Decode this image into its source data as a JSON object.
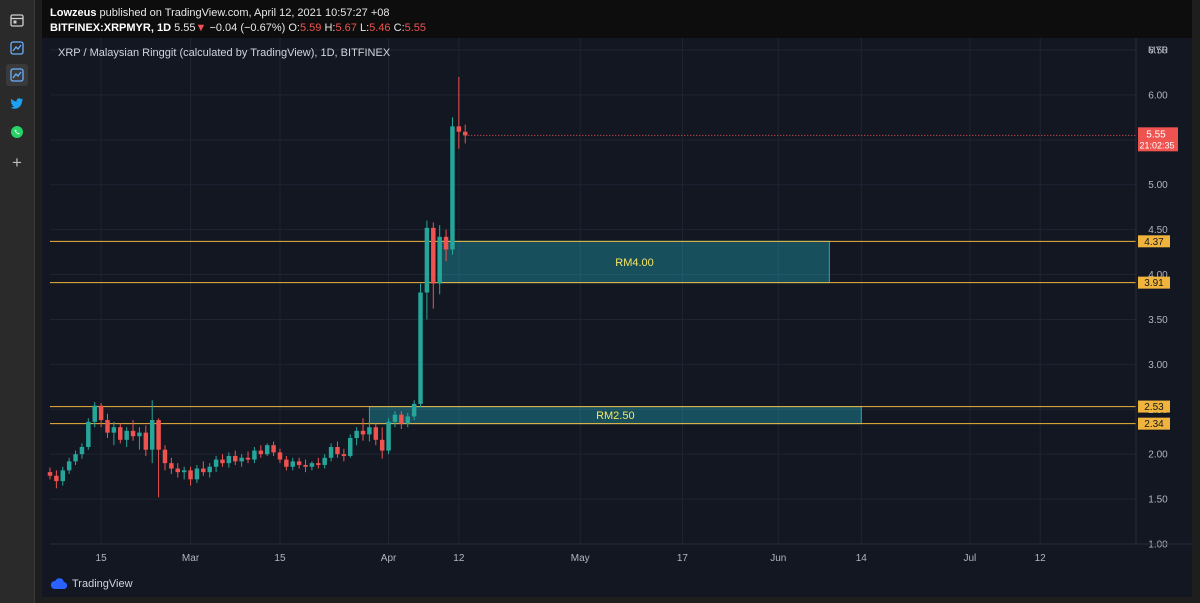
{
  "header": {
    "publisher_name": "Lowzeus",
    "publisher_text": "published on TradingView.com, April 12, 2021 10:57:27 +08",
    "symbol": "BITFINEX:XRPMYR, 1D",
    "last": "5.55",
    "change_arrow": "▼",
    "change": "−0.04 (−0.67%)",
    "o_label": "O:",
    "o_value": "5.59",
    "h_label": "H:",
    "h_value": "5.67",
    "l_label": "L:",
    "l_value": "5.46",
    "c_label": "C:",
    "c_value": "5.55"
  },
  "chart_title": "XRP / Malaysian Ringgit (calculated by TradingView), 1D, BITFINEX",
  "footer": {
    "brand": "TradingView"
  },
  "sidebar": {
    "icons": [
      "calendar-icon",
      "chart-icon",
      "chart-active-icon",
      "twitter-icon",
      "whatsapp-icon",
      "plus-icon"
    ]
  },
  "colors": {
    "up": "#26a69a",
    "down": "#ef5350",
    "level": "#f0b43c",
    "zone": "#26c6da",
    "zone_text": "#f5e663",
    "bg": "#131722",
    "grid": "#1f2433"
  },
  "chart_data": {
    "type": "candlestick",
    "currency_label": "MYR",
    "ylim": [
      1.0,
      6.5
    ],
    "yticks": [
      "6.50",
      "6.00",
      "5.50",
      "5.00",
      "4.50",
      "4.00",
      "3.50",
      "3.00",
      "2.50",
      "2.00",
      "1.50",
      "1.00"
    ],
    "xlim": [
      "2021-02-07",
      "2021-07-27"
    ],
    "xticks": [
      {
        "date": "2021-02-15",
        "label": "15"
      },
      {
        "date": "2021-03-01",
        "label": "Mar"
      },
      {
        "date": "2021-03-15",
        "label": "15"
      },
      {
        "date": "2021-04-01",
        "label": "Apr"
      },
      {
        "date": "2021-04-12",
        "label": "12"
      },
      {
        "date": "2021-05-01",
        "label": "May"
      },
      {
        "date": "2021-05-17",
        "label": "17"
      },
      {
        "date": "2021-06-01",
        "label": "Jun"
      },
      {
        "date": "2021-06-14",
        "label": "14"
      },
      {
        "date": "2021-07-01",
        "label": "Jul"
      },
      {
        "date": "2021-07-12",
        "label": "12"
      }
    ],
    "last_price": "5.55",
    "countdown": "21:02:35",
    "levels": [
      {
        "value": 4.37,
        "label": "4.37"
      },
      {
        "value": 3.91,
        "label": "3.91"
      },
      {
        "value": 2.53,
        "label": "2.53"
      },
      {
        "value": 2.34,
        "label": "2.34"
      }
    ],
    "zones": [
      {
        "from_date": "2021-04-09",
        "to_date": "2021-06-09",
        "low": 3.91,
        "high": 4.37,
        "label": "RM4.00"
      },
      {
        "from_date": "2021-03-29",
        "to_date": "2021-06-14",
        "low": 2.34,
        "high": 2.53,
        "label": "RM2.50"
      }
    ],
    "candles": [
      {
        "date": "2021-02-07",
        "o": 1.8,
        "h": 1.85,
        "l": 1.72,
        "c": 1.76
      },
      {
        "date": "2021-02-08",
        "o": 1.76,
        "h": 1.82,
        "l": 1.62,
        "c": 1.7
      },
      {
        "date": "2021-02-09",
        "o": 1.7,
        "h": 1.86,
        "l": 1.65,
        "c": 1.82
      },
      {
        "date": "2021-02-10",
        "o": 1.82,
        "h": 1.96,
        "l": 1.78,
        "c": 1.92
      },
      {
        "date": "2021-02-11",
        "o": 1.92,
        "h": 2.04,
        "l": 1.88,
        "c": 2.0
      },
      {
        "date": "2021-02-12",
        "o": 2.0,
        "h": 2.12,
        "l": 1.95,
        "c": 2.08
      },
      {
        "date": "2021-02-13",
        "o": 2.08,
        "h": 2.4,
        "l": 2.05,
        "c": 2.36
      },
      {
        "date": "2021-02-14",
        "o": 2.36,
        "h": 2.58,
        "l": 2.3,
        "c": 2.54
      },
      {
        "date": "2021-02-15",
        "o": 2.54,
        "h": 2.57,
        "l": 2.3,
        "c": 2.38
      },
      {
        "date": "2021-02-16",
        "o": 2.38,
        "h": 2.45,
        "l": 2.18,
        "c": 2.24
      },
      {
        "date": "2021-02-17",
        "o": 2.24,
        "h": 2.36,
        "l": 2.1,
        "c": 2.3
      },
      {
        "date": "2021-02-18",
        "o": 2.3,
        "h": 2.34,
        "l": 2.12,
        "c": 2.16
      },
      {
        "date": "2021-02-19",
        "o": 2.16,
        "h": 2.3,
        "l": 2.08,
        "c": 2.26
      },
      {
        "date": "2021-02-20",
        "o": 2.26,
        "h": 2.38,
        "l": 2.15,
        "c": 2.2
      },
      {
        "date": "2021-02-21",
        "o": 2.2,
        "h": 2.3,
        "l": 2.05,
        "c": 2.24
      },
      {
        "date": "2021-02-22",
        "o": 2.24,
        "h": 2.32,
        "l": 1.98,
        "c": 2.05
      },
      {
        "date": "2021-02-23",
        "o": 2.05,
        "h": 2.6,
        "l": 1.9,
        "c": 2.38
      },
      {
        "date": "2021-02-24",
        "o": 2.38,
        "h": 2.4,
        "l": 1.52,
        "c": 2.05
      },
      {
        "date": "2021-02-25",
        "o": 2.05,
        "h": 2.1,
        "l": 1.82,
        "c": 1.9
      },
      {
        "date": "2021-02-26",
        "o": 1.9,
        "h": 1.96,
        "l": 1.78,
        "c": 1.84
      },
      {
        "date": "2021-02-27",
        "o": 1.84,
        "h": 1.9,
        "l": 1.74,
        "c": 1.8
      },
      {
        "date": "2021-02-28",
        "o": 1.8,
        "h": 1.86,
        "l": 1.72,
        "c": 1.82
      },
      {
        "date": "2021-03-01",
        "o": 1.82,
        "h": 1.86,
        "l": 1.65,
        "c": 1.72
      },
      {
        "date": "2021-03-02",
        "o": 1.72,
        "h": 1.88,
        "l": 1.68,
        "c": 1.84
      },
      {
        "date": "2021-03-03",
        "o": 1.84,
        "h": 1.92,
        "l": 1.76,
        "c": 1.8
      },
      {
        "date": "2021-03-04",
        "o": 1.8,
        "h": 1.9,
        "l": 1.74,
        "c": 1.86
      },
      {
        "date": "2021-03-05",
        "o": 1.86,
        "h": 1.98,
        "l": 1.8,
        "c": 1.94
      },
      {
        "date": "2021-03-06",
        "o": 1.94,
        "h": 2.0,
        "l": 1.86,
        "c": 1.9
      },
      {
        "date": "2021-03-07",
        "o": 1.9,
        "h": 2.02,
        "l": 1.85,
        "c": 1.98
      },
      {
        "date": "2021-03-08",
        "o": 1.98,
        "h": 2.04,
        "l": 1.88,
        "c": 1.92
      },
      {
        "date": "2021-03-09",
        "o": 1.92,
        "h": 2.0,
        "l": 1.86,
        "c": 1.96
      },
      {
        "date": "2021-03-10",
        "o": 1.96,
        "h": 2.03,
        "l": 1.9,
        "c": 1.94
      },
      {
        "date": "2021-03-11",
        "o": 1.94,
        "h": 2.08,
        "l": 1.9,
        "c": 2.04
      },
      {
        "date": "2021-03-12",
        "o": 2.04,
        "h": 2.1,
        "l": 1.96,
        "c": 2.0
      },
      {
        "date": "2021-03-13",
        "o": 2.0,
        "h": 2.12,
        "l": 1.98,
        "c": 2.1
      },
      {
        "date": "2021-03-14",
        "o": 2.1,
        "h": 2.14,
        "l": 1.98,
        "c": 2.02
      },
      {
        "date": "2021-03-15",
        "o": 2.02,
        "h": 2.06,
        "l": 1.9,
        "c": 1.94
      },
      {
        "date": "2021-03-16",
        "o": 1.94,
        "h": 1.98,
        "l": 1.82,
        "c": 1.86
      },
      {
        "date": "2021-03-17",
        "o": 1.86,
        "h": 1.96,
        "l": 1.82,
        "c": 1.92
      },
      {
        "date": "2021-03-18",
        "o": 1.92,
        "h": 1.96,
        "l": 1.84,
        "c": 1.88
      },
      {
        "date": "2021-03-19",
        "o": 1.88,
        "h": 1.94,
        "l": 1.8,
        "c": 1.86
      },
      {
        "date": "2021-03-20",
        "o": 1.86,
        "h": 1.92,
        "l": 1.82,
        "c": 1.9
      },
      {
        "date": "2021-03-21",
        "o": 1.9,
        "h": 1.96,
        "l": 1.84,
        "c": 1.88
      },
      {
        "date": "2021-03-22",
        "o": 1.88,
        "h": 2.0,
        "l": 1.84,
        "c": 1.96
      },
      {
        "date": "2021-03-23",
        "o": 1.96,
        "h": 2.12,
        "l": 1.92,
        "c": 2.08
      },
      {
        "date": "2021-03-24",
        "o": 2.08,
        "h": 2.14,
        "l": 1.96,
        "c": 2.0
      },
      {
        "date": "2021-03-25",
        "o": 2.0,
        "h": 2.06,
        "l": 1.92,
        "c": 1.98
      },
      {
        "date": "2021-03-26",
        "o": 1.98,
        "h": 2.22,
        "l": 1.96,
        "c": 2.18
      },
      {
        "date": "2021-03-27",
        "o": 2.18,
        "h": 2.3,
        "l": 2.1,
        "c": 2.26
      },
      {
        "date": "2021-03-28",
        "o": 2.26,
        "h": 2.4,
        "l": 2.15,
        "c": 2.22
      },
      {
        "date": "2021-03-29",
        "o": 2.22,
        "h": 2.36,
        "l": 2.14,
        "c": 2.3
      },
      {
        "date": "2021-03-30",
        "o": 2.3,
        "h": 2.34,
        "l": 2.1,
        "c": 2.16
      },
      {
        "date": "2021-03-31",
        "o": 2.16,
        "h": 2.3,
        "l": 1.95,
        "c": 2.04
      },
      {
        "date": "2021-04-01",
        "o": 2.04,
        "h": 2.4,
        "l": 2.0,
        "c": 2.36
      },
      {
        "date": "2021-04-02",
        "o": 2.36,
        "h": 2.48,
        "l": 2.3,
        "c": 2.44
      },
      {
        "date": "2021-04-03",
        "o": 2.44,
        "h": 2.48,
        "l": 2.28,
        "c": 2.34
      },
      {
        "date": "2021-04-04",
        "o": 2.34,
        "h": 2.46,
        "l": 2.3,
        "c": 2.42
      },
      {
        "date": "2021-04-05",
        "o": 2.42,
        "h": 2.6,
        "l": 2.38,
        "c": 2.56
      },
      {
        "date": "2021-04-06",
        "o": 2.56,
        "h": 3.9,
        "l": 2.52,
        "c": 3.8
      },
      {
        "date": "2021-04-07",
        "o": 3.8,
        "h": 4.6,
        "l": 3.5,
        "c": 4.52
      },
      {
        "date": "2021-04-08",
        "o": 4.52,
        "h": 4.58,
        "l": 3.62,
        "c": 3.9
      },
      {
        "date": "2021-04-09",
        "o": 3.9,
        "h": 4.55,
        "l": 3.78,
        "c": 4.42
      },
      {
        "date": "2021-04-10",
        "o": 4.42,
        "h": 4.5,
        "l": 4.15,
        "c": 4.28
      },
      {
        "date": "2021-04-11",
        "o": 4.28,
        "h": 5.75,
        "l": 4.22,
        "c": 5.65
      },
      {
        "date": "2021-04-12",
        "o": 5.65,
        "h": 6.2,
        "l": 5.4,
        "c": 5.59
      },
      {
        "date": "2021-04-13",
        "o": 5.59,
        "h": 5.67,
        "l": 5.46,
        "c": 5.55
      }
    ]
  }
}
